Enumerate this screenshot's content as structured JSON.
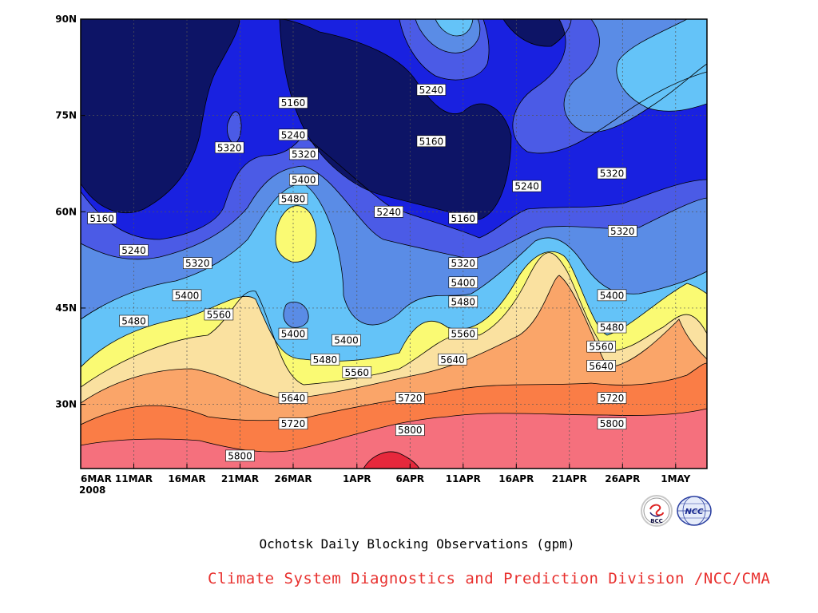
{
  "chart_data": {
    "type": "heatmap",
    "subtype": "filled contour (time-latitude Hovmoller, 500hPa geopotential height)",
    "title": "Ochotsk Daily Blocking Observations (gpm)",
    "credit": "Climate System Diagnostics and Prediction Division /NCC/CMA",
    "x_axis": {
      "ticks": [
        "6MAR",
        "11MAR",
        "16MAR",
        "21MAR",
        "26MAR",
        "1APR",
        "6APR",
        "11APR",
        "16APR",
        "21APR",
        "26APR",
        "1MAY"
      ],
      "year_label": "2008",
      "range_days_from_start": [
        0,
        59
      ]
    },
    "y_axis": {
      "ticks": [
        "30N",
        "45N",
        "60N",
        "75N",
        "90N"
      ],
      "tick_values": [
        30,
        45,
        60,
        75,
        90
      ],
      "range": [
        20,
        90
      ]
    },
    "contour_levels": [
      5160,
      5240,
      5320,
      5400,
      5480,
      5560,
      5640,
      5720,
      5800,
      5880
    ],
    "fill_colors": [
      "#0d1466",
      "#1921e0",
      "#4b5be6",
      "#5a8ce6",
      "#64c3f8",
      "#fafa73",
      "#fae1a0",
      "#faa569",
      "#fa7d46",
      "#f5707d",
      "#e6283c"
    ],
    "contour_labels": [
      {
        "text": "5160",
        "date": "8MAR",
        "lat": 59
      },
      {
        "text": "5240",
        "date": "11MAR",
        "lat": 54
      },
      {
        "text": "5320",
        "date": "17MAR",
        "lat": 52
      },
      {
        "text": "5400",
        "date": "16MAR",
        "lat": 47
      },
      {
        "text": "5480",
        "date": "11MAR",
        "lat": 43
      },
      {
        "text": "5560",
        "date": "19MAR",
        "lat": 44
      },
      {
        "text": "5320",
        "date": "20MAR",
        "lat": 70
      },
      {
        "text": "5160",
        "date": "26MAR",
        "lat": 77
      },
      {
        "text": "5240",
        "date": "26MAR",
        "lat": 72
      },
      {
        "text": "5320",
        "date": "27MAR",
        "lat": 69
      },
      {
        "text": "5400",
        "date": "27MAR",
        "lat": 65
      },
      {
        "text": "5480",
        "date": "26MAR",
        "lat": 62
      },
      {
        "text": "5400",
        "date": "26MAR",
        "lat": 41
      },
      {
        "text": "5480",
        "date": "29MAR",
        "lat": 37
      },
      {
        "text": "5400",
        "date": "31MAR",
        "lat": 40
      },
      {
        "text": "5560",
        "date": "1APR",
        "lat": 35
      },
      {
        "text": "5640",
        "date": "26MAR",
        "lat": 31
      },
      {
        "text": "5720",
        "date": "26MAR",
        "lat": 27
      },
      {
        "text": "5800",
        "date": "21MAR",
        "lat": 22
      },
      {
        "text": "5240",
        "date": "8APR",
        "lat": 79
      },
      {
        "text": "5160",
        "date": "8APR",
        "lat": 71
      },
      {
        "text": "5240",
        "date": "4APR",
        "lat": 60
      },
      {
        "text": "5160",
        "date": "11APR",
        "lat": 59
      },
      {
        "text": "5320",
        "date": "11APR",
        "lat": 52
      },
      {
        "text": "5400",
        "date": "11APR",
        "lat": 49
      },
      {
        "text": "5480",
        "date": "11APR",
        "lat": 46
      },
      {
        "text": "5560",
        "date": "11APR",
        "lat": 41
      },
      {
        "text": "5640",
        "date": "10APR",
        "lat": 37
      },
      {
        "text": "5720",
        "date": "6APR",
        "lat": 31
      },
      {
        "text": "5800",
        "date": "6APR",
        "lat": 26
      },
      {
        "text": "5240",
        "date": "17APR",
        "lat": 64
      },
      {
        "text": "5320",
        "date": "25APR",
        "lat": 66
      },
      {
        "text": "5320",
        "date": "26APR",
        "lat": 57
      },
      {
        "text": "5400",
        "date": "25APR",
        "lat": 47
      },
      {
        "text": "5480",
        "date": "25APR",
        "lat": 42
      },
      {
        "text": "5560",
        "date": "24APR",
        "lat": 39
      },
      {
        "text": "5640",
        "date": "24APR",
        "lat": 36
      },
      {
        "text": "5720",
        "date": "25APR",
        "lat": 31
      },
      {
        "text": "5800",
        "date": "25APR",
        "lat": 27
      }
    ]
  },
  "logos": {
    "left": {
      "name": "BCC",
      "text": "BCC"
    },
    "right": {
      "name": "NCC",
      "text": "NCC"
    }
  }
}
